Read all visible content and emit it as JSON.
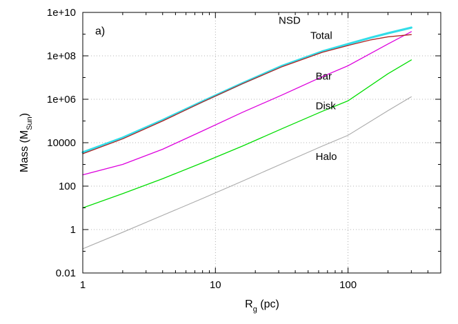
{
  "chart_data": {
    "type": "line",
    "panel_label": "a)",
    "xlabel": {
      "main": "R",
      "sub": "g",
      "unit": " (pc)"
    },
    "ylabel": {
      "main": "Mass (M",
      "sub": "Sun",
      "close": ")"
    },
    "xscale": "log",
    "yscale": "log",
    "xlim": [
      1,
      500
    ],
    "ylim": [
      0.01,
      10000000000
    ],
    "grid": true,
    "x_ticks": [
      {
        "value": 1,
        "label": "1"
      },
      {
        "value": 10,
        "label": "10"
      },
      {
        "value": 100,
        "label": "100"
      }
    ],
    "y_ticks": [
      {
        "value": 0.01,
        "label": "0.01"
      },
      {
        "value": 1,
        "label": "1"
      },
      {
        "value": 100,
        "label": "100"
      },
      {
        "value": 10000,
        "label": "10000"
      },
      {
        "value": 1000000,
        "label": "1e+06"
      },
      {
        "value": 100000000,
        "label": "1e+08"
      },
      {
        "value": 10000000000,
        "label": "1e+10"
      }
    ],
    "series": [
      {
        "name": "Total",
        "color": "#33dde8",
        "width": 3.2,
        "x": [
          1,
          2,
          4,
          8,
          16,
          32,
          64,
          100,
          150,
          200,
          300
        ],
        "y": [
          3600,
          17000,
          110000,
          800000,
          5500000,
          35000000,
          160000000,
          350000000,
          700000000,
          1100000000,
          2000000000
        ],
        "label_at": [
          52,
          600000000
        ]
      },
      {
        "name": "NSD",
        "color": "#b22222",
        "width": 1.3,
        "x": [
          1,
          2,
          4,
          8,
          16,
          32,
          64,
          100,
          150,
          200,
          300
        ],
        "y": [
          3100,
          15000,
          100000,
          750000,
          5200000,
          32000000,
          145000000,
          300000000,
          550000000,
          750000000,
          950000000
        ],
        "label_at": [
          30,
          3000000000
        ]
      },
      {
        "name": "Bar",
        "color": "#dd00dd",
        "width": 1.3,
        "x": [
          1,
          2,
          4,
          8,
          16,
          32,
          64,
          100,
          200,
          300
        ],
        "y": [
          330,
          1000,
          5000,
          35000,
          250000,
          1600000,
          11000000,
          35000000,
          350000000,
          1300000000
        ],
        "label_at": [
          57,
          8000000
        ]
      },
      {
        "name": "Disk",
        "color": "#00dd00",
        "width": 1.3,
        "x": [
          1,
          2,
          4,
          8,
          16,
          32,
          64,
          100,
          200,
          300
        ],
        "y": [
          10,
          45,
          220,
          1200,
          7000,
          45000,
          280000,
          850000,
          15000000,
          65000000
        ],
        "label_at": [
          57,
          350000
        ]
      },
      {
        "name": "Halo",
        "color": "#aaaaaa",
        "width": 1.1,
        "x": [
          1,
          2,
          4,
          8,
          16,
          32,
          64,
          100,
          200,
          300
        ],
        "y": [
          0.13,
          0.75,
          4.5,
          27,
          170,
          1100,
          7000,
          22000,
          300000,
          1300000
        ],
        "label_at": [
          57,
          1600
        ]
      }
    ]
  }
}
